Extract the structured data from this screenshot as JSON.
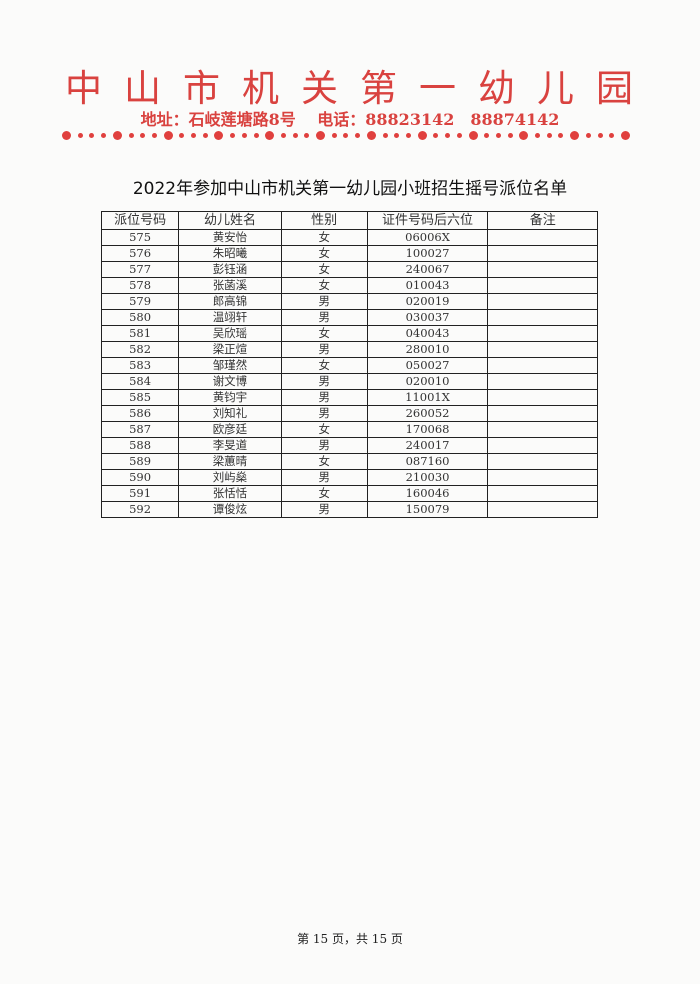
{
  "letterhead": {
    "org_name": "中山市机关第一幼儿园",
    "address": "地址：石岐莲塘路8号",
    "phone": "电话：88823142　88874142",
    "accent_color": "#d9423f"
  },
  "title": "2022年参加中山市机关第一幼儿园小班招生摇号派位名单",
  "table": {
    "headers": [
      "派位号码",
      "幼儿姓名",
      "性别",
      "证件号码后六位",
      "备注"
    ],
    "rows": [
      [
        "575",
        "黄安怡",
        "女",
        "06006X",
        ""
      ],
      [
        "576",
        "朱昭曦",
        "女",
        "100027",
        ""
      ],
      [
        "577",
        "彭钰涵",
        "女",
        "240067",
        ""
      ],
      [
        "578",
        "张菡溪",
        "女",
        "010043",
        ""
      ],
      [
        "579",
        "郎高锦",
        "男",
        "020019",
        ""
      ],
      [
        "580",
        "温翊轩",
        "男",
        "030037",
        ""
      ],
      [
        "581",
        "吴欣瑶",
        "女",
        "040043",
        ""
      ],
      [
        "582",
        "梁正煊",
        "男",
        "280010",
        ""
      ],
      [
        "583",
        "邹瑾然",
        "女",
        "050027",
        ""
      ],
      [
        "584",
        "谢文博",
        "男",
        "020010",
        ""
      ],
      [
        "585",
        "黄钧宇",
        "男",
        "11001X",
        ""
      ],
      [
        "586",
        "刘知礼",
        "男",
        "260052",
        ""
      ],
      [
        "587",
        "欧彦廷",
        "女",
        "170068",
        ""
      ],
      [
        "588",
        "李旻道",
        "男",
        "240017",
        ""
      ],
      [
        "589",
        "梁蕙晴",
        "女",
        "087160",
        ""
      ],
      [
        "590",
        "刘屿燊",
        "男",
        "210030",
        ""
      ],
      [
        "591",
        "张恬恬",
        "女",
        "160046",
        ""
      ],
      [
        "592",
        "谭俊炫",
        "男",
        "150079",
        ""
      ]
    ]
  },
  "footer": "第 15 页，共 15 页"
}
